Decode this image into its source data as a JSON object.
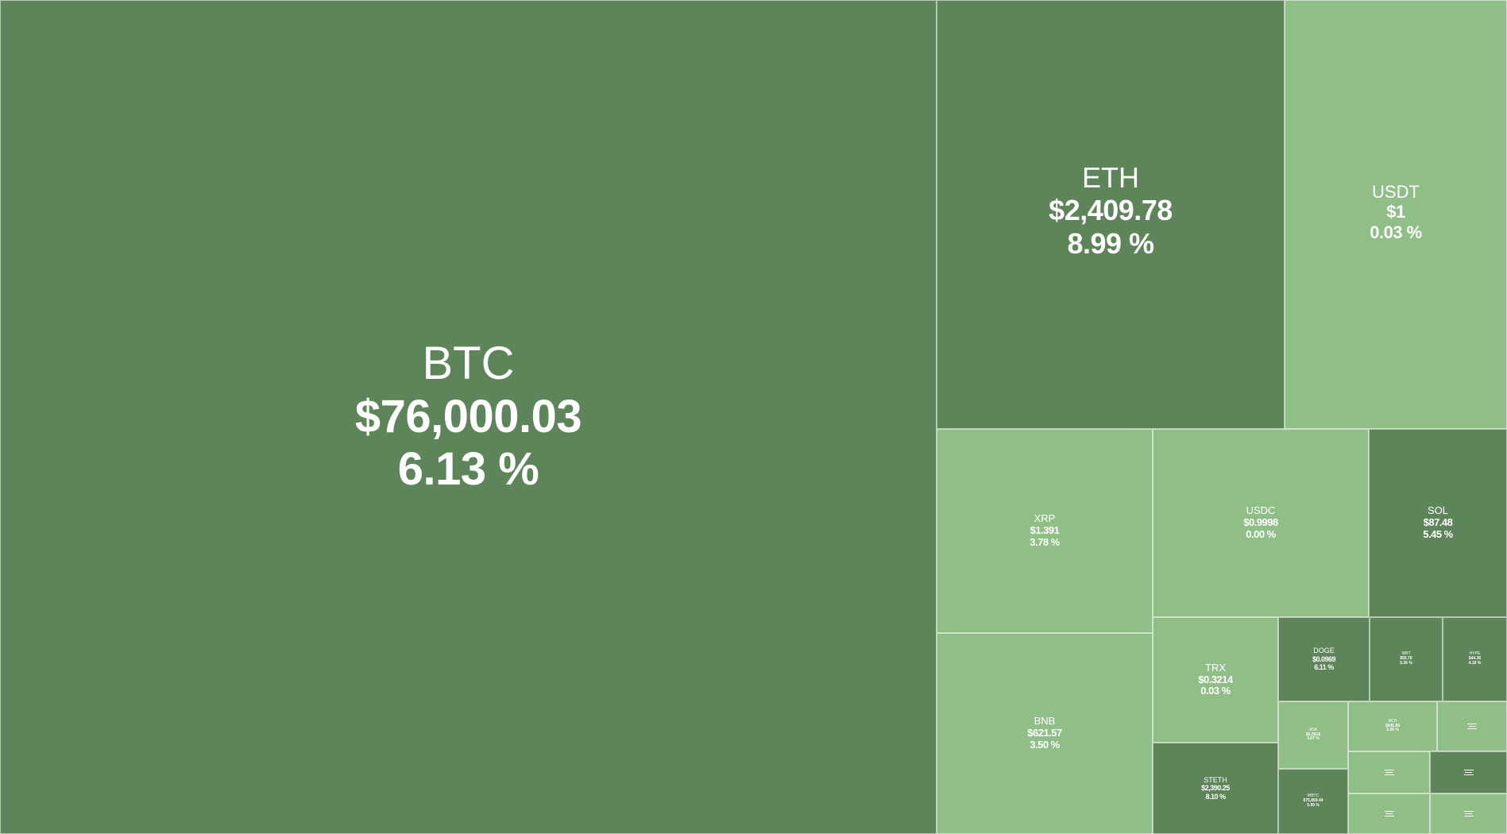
{
  "palette": {
    "up_strong": "#5e845a",
    "up_light": "#8fbe87",
    "text": "#ffffff",
    "divider": "#ffffff"
  },
  "tiles": {
    "btc": {
      "symbol": "BTC",
      "price": "$76,000.03",
      "change": "6.13 %"
    },
    "eth": {
      "symbol": "ETH",
      "price": "$2,409.78",
      "change": "8.99 %"
    },
    "usdt": {
      "symbol": "USDT",
      "price": "$1",
      "change": "0.03 %"
    },
    "xrp": {
      "symbol": "XRP",
      "price": "$1.391",
      "change": "3.78 %"
    },
    "usdc": {
      "symbol": "USDC",
      "price": "$0.9998",
      "change": "0.00 %"
    },
    "sol": {
      "symbol": "SOL",
      "price": "$87.48",
      "change": "5.45 %"
    },
    "bnb": {
      "symbol": "BNB",
      "price": "$621.57",
      "change": "3.50 %"
    },
    "trx": {
      "symbol": "TRX",
      "price": "$0.3214",
      "change": "0.03 %"
    },
    "doge": {
      "symbol": "DOGE",
      "price": "$0.0969",
      "change": "6.11 %"
    },
    "steth": {
      "symbol": "STETH",
      "price": "$2,390.25",
      "change": "8.10 %"
    },
    "wbt": {
      "symbol": "WBT",
      "price": "$55.76",
      "change": "5.36 %"
    },
    "hype": {
      "symbol": "HYPE",
      "price": "$44.36",
      "change": "4.18 %"
    },
    "ada": {
      "symbol": "ADA",
      "price": "$0.2618",
      "change": "3.07 %"
    },
    "bch": {
      "symbol": "BCH",
      "price": "$445.80",
      "change": "3.36 %"
    },
    "wbtc": {
      "symbol": "WBTC",
      "price": "$75,859.44",
      "change": "5.99 %"
    }
  }
}
